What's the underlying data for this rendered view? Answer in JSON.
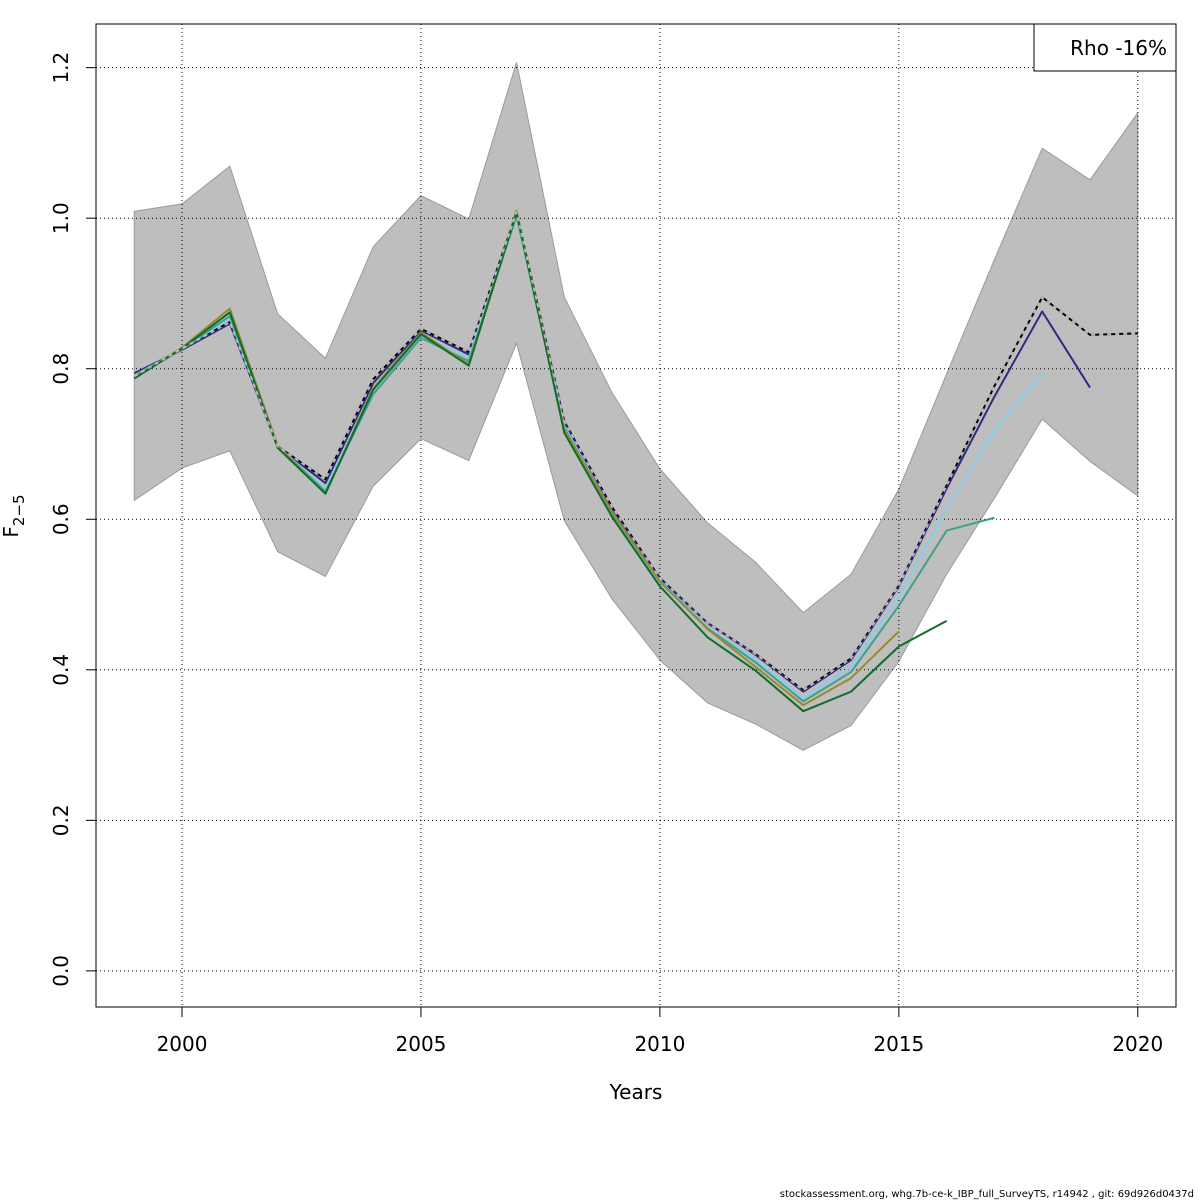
{
  "chart_data": {
    "type": "line",
    "title": "",
    "xlabel": "Years",
    "ylabel": {
      "main": "F",
      "sub": "2−5"
    },
    "xlim": [
      1998.2,
      2020.8
    ],
    "ylim": [
      -0.048,
      1.258
    ],
    "x_ticks": [
      2000,
      2005,
      2010,
      2015,
      2020
    ],
    "x_tick_labels": [
      "2000",
      "2005",
      "2010",
      "2015",
      "2020"
    ],
    "y_ticks": [
      0.0,
      0.2,
      0.4,
      0.6,
      0.8,
      1.0,
      1.2
    ],
    "y_tick_labels": [
      "0.0",
      "0.2",
      "0.4",
      "0.6",
      "0.8",
      "1.0",
      "1.2"
    ],
    "grid": true,
    "legend": {
      "placement": "top-right",
      "text": "Rho -16%"
    },
    "band": {
      "color": "#bebebe",
      "x": [
        1999,
        2000,
        2001,
        2002,
        2003,
        2004,
        2005,
        2006,
        2007,
        2008,
        2009,
        2010,
        2011,
        2012,
        2013,
        2014,
        2015,
        2016,
        2017,
        2018,
        2019,
        2020
      ],
      "lower": [
        0.625,
        0.668,
        0.691,
        0.557,
        0.524,
        0.644,
        0.707,
        0.678,
        0.834,
        0.598,
        0.494,
        0.413,
        0.356,
        0.328,
        0.293,
        0.326,
        0.411,
        0.527,
        0.628,
        0.733,
        0.677,
        0.631
      ],
      "upper": [
        1.009,
        1.019,
        1.069,
        0.873,
        0.814,
        0.962,
        1.03,
        0.999,
        1.207,
        0.895,
        0.768,
        0.667,
        0.595,
        0.543,
        0.476,
        0.527,
        0.64,
        0.793,
        0.945,
        1.093,
        1.051,
        1.14
      ]
    },
    "series": [
      {
        "color": "#000000",
        "dashed": false,
        "x": [
          1999,
          2000,
          2001,
          2002,
          2003,
          2004,
          2005,
          2006,
          2007,
          2008,
          2009,
          2010,
          2011,
          2012,
          2013,
          2014,
          2015,
          2016,
          2017,
          2018,
          2019,
          2020
        ],
        "y": [
          0.79,
          0.827,
          0.862,
          0.697,
          0.653,
          0.786,
          0.853,
          0.822,
          1.008,
          0.73,
          0.616,
          0.522,
          0.462,
          0.421,
          0.373,
          0.415,
          0.512,
          0.645,
          0.777,
          0.895,
          0.845,
          0.847
        ]
      },
      {
        "color": "#2e2a7f",
        "dashed": false,
        "x": [
          1999,
          2000,
          2001,
          2002,
          2003,
          2004,
          2005,
          2006,
          2007,
          2008,
          2009,
          2010,
          2011,
          2012,
          2013,
          2014,
          2015,
          2016,
          2017,
          2018,
          2019
        ],
        "y": [
          0.794,
          0.825,
          0.86,
          0.697,
          0.648,
          0.781,
          0.851,
          0.819,
          1.006,
          0.729,
          0.613,
          0.521,
          0.462,
          0.42,
          0.371,
          0.413,
          0.511,
          0.641,
          0.763,
          0.876,
          0.775
        ]
      },
      {
        "color": "#87ceeb",
        "dashed": false,
        "x": [
          1999,
          2000,
          2001,
          2002,
          2003,
          2004,
          2005,
          2006,
          2007,
          2008,
          2009,
          2010,
          2011,
          2012,
          2013,
          2014,
          2015,
          2016,
          2017,
          2018
        ],
        "y": [
          0.791,
          0.826,
          0.867,
          0.697,
          0.64,
          0.772,
          0.845,
          0.814,
          1.004,
          0.724,
          0.609,
          0.518,
          0.456,
          0.413,
          0.362,
          0.404,
          0.497,
          0.614,
          0.718,
          0.793
        ]
      },
      {
        "color": "#3fa08c",
        "dashed": false,
        "x": [
          1999,
          2000,
          2001,
          2002,
          2003,
          2004,
          2005,
          2006,
          2007,
          2008,
          2009,
          2010,
          2011,
          2012,
          2013,
          2014,
          2015,
          2016,
          2017
        ],
        "y": [
          0.79,
          0.826,
          0.87,
          0.697,
          0.637,
          0.766,
          0.841,
          0.81,
          1.003,
          0.721,
          0.608,
          0.517,
          0.455,
          0.41,
          0.358,
          0.397,
          0.485,
          0.585,
          0.602
        ]
      },
      {
        "color": "#9a8a2e",
        "dashed": false,
        "x": [
          1999,
          2000,
          2001,
          2002,
          2003,
          2004,
          2005,
          2006,
          2007,
          2008,
          2009,
          2010,
          2011,
          2012,
          2013,
          2014,
          2015
        ],
        "y": [
          0.788,
          0.828,
          0.88,
          0.698,
          0.634,
          0.774,
          0.848,
          0.806,
          1.01,
          0.719,
          0.61,
          0.517,
          0.454,
          0.404,
          0.353,
          0.389,
          0.451
        ]
      },
      {
        "color": "#0b6e2c",
        "dashed": false,
        "x": [
          1999,
          2000,
          2001,
          2002,
          2003,
          2004,
          2005,
          2006,
          2007,
          2008,
          2009,
          2010,
          2011,
          2012,
          2013,
          2014,
          2015,
          2016
        ],
        "y": [
          0.787,
          0.827,
          0.875,
          0.695,
          0.634,
          0.772,
          0.846,
          0.804,
          1.008,
          0.715,
          0.603,
          0.511,
          0.443,
          0.399,
          0.345,
          0.371,
          0.431,
          0.465
        ]
      },
      {
        "color": "#bbbbbb",
        "dashed": true,
        "x": [
          1999,
          2000,
          2001,
          2002,
          2003,
          2004,
          2005,
          2006,
          2007,
          2008,
          2009,
          2010,
          2011,
          2012,
          2013,
          2014,
          2015,
          2016,
          2017,
          2018,
          2019,
          2020
        ],
        "y": [
          0.79,
          0.827,
          0.862,
          0.697,
          0.653,
          0.786,
          0.853,
          0.822,
          1.008,
          0.73,
          0.616,
          0.522,
          0.462,
          0.421,
          0.373,
          0.415,
          0.512,
          0.645,
          0.777,
          0.895,
          0.845,
          0.847
        ]
      }
    ]
  },
  "footer": {
    "text": "stockassessment.org, whg.7b-ce-k_IBP_full_SurveyTS, r14942 , git: 69d926d0437d"
  }
}
